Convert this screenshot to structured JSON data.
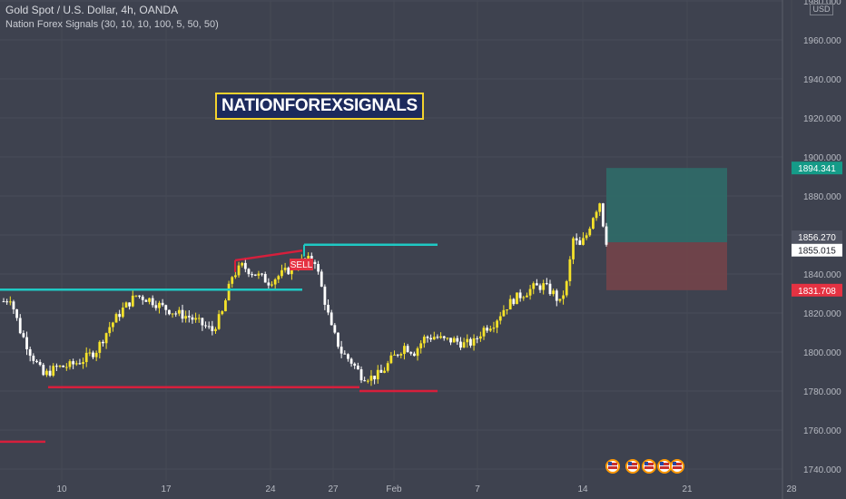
{
  "header": {
    "symbol_line": "Gold Spot / U.S. Dollar, 4h, OANDA",
    "indicator_line": "Nation Forex Signals  (30, 10, 10, 100, 5, 50, 50)"
  },
  "watermark": "NATIONFOREXSIGNALS",
  "currency_badge": "USD",
  "sell_label": "SELL",
  "colors": {
    "background": "#3e424f",
    "bull_candle": "#f5e22a",
    "bear_candle": "#ffffff",
    "resistance_line": "#1fc9c4",
    "support_line": "#d61f3c",
    "take_profit_zone": "#2f6b68",
    "stop_loss_zone": "#734449",
    "take_profit_tag": "#159b88",
    "stop_loss_tag": "#e53242"
  },
  "chart_data": {
    "type": "candlestick",
    "title": "Gold Spot / U.S. Dollar, 4h, OANDA",
    "ylim": [
      1735,
      1995
    ],
    "y_ticks": [
      1740,
      1760,
      1780,
      1800,
      1820,
      1840,
      1860,
      1880,
      1900,
      1920,
      1940,
      1960,
      1980
    ],
    "y_tick_labels": [
      "1740.000",
      "1760.000",
      "1780.000",
      "1800.000",
      "1820.000",
      "1840.000",
      "1860.000",
      "1880.000",
      "1900.000",
      "1920.000",
      "1940.000",
      "1960.000",
      "1980.000"
    ],
    "x_ticks": [
      "10",
      "17",
      "24",
      "27",
      "Feb",
      "7",
      "14",
      "21",
      "28"
    ],
    "price_path": [
      {
        "t": 0,
        "p": 1826
      },
      {
        "t": 2,
        "p": 1828
      },
      {
        "t": 5,
        "p": 1811
      },
      {
        "t": 8,
        "p": 1800
      },
      {
        "t": 12,
        "p": 1788
      },
      {
        "t": 16,
        "p": 1792
      },
      {
        "t": 20,
        "p": 1793
      },
      {
        "t": 24,
        "p": 1796
      },
      {
        "t": 28,
        "p": 1801
      },
      {
        "t": 32,
        "p": 1813
      },
      {
        "t": 36,
        "p": 1822
      },
      {
        "t": 40,
        "p": 1829
      },
      {
        "t": 44,
        "p": 1827
      },
      {
        "t": 48,
        "p": 1823
      },
      {
        "t": 52,
        "p": 1820
      },
      {
        "t": 56,
        "p": 1818
      },
      {
        "t": 60,
        "p": 1814
      },
      {
        "t": 63,
        "p": 1811
      },
      {
        "t": 66,
        "p": 1820
      },
      {
        "t": 69,
        "p": 1839
      },
      {
        "t": 72,
        "p": 1844
      },
      {
        "t": 76,
        "p": 1840
      },
      {
        "t": 80,
        "p": 1836
      },
      {
        "t": 84,
        "p": 1840
      },
      {
        "t": 87,
        "p": 1843
      },
      {
        "t": 89,
        "p": 1846
      },
      {
        "t": 91,
        "p": 1847
      },
      {
        "t": 94,
        "p": 1847
      },
      {
        "t": 96,
        "p": 1833
      },
      {
        "t": 99,
        "p": 1812
      },
      {
        "t": 102,
        "p": 1800
      },
      {
        "t": 105,
        "p": 1795
      },
      {
        "t": 108,
        "p": 1788
      },
      {
        "t": 111,
        "p": 1787
      },
      {
        "t": 114,
        "p": 1789
      },
      {
        "t": 117,
        "p": 1796
      },
      {
        "t": 121,
        "p": 1803
      },
      {
        "t": 124,
        "p": 1800
      },
      {
        "t": 127,
        "p": 1807
      },
      {
        "t": 130,
        "p": 1808
      },
      {
        "t": 133,
        "p": 1806
      },
      {
        "t": 136,
        "p": 1806
      },
      {
        "t": 139,
        "p": 1804
      },
      {
        "t": 142,
        "p": 1805
      },
      {
        "t": 145,
        "p": 1812
      },
      {
        "t": 148,
        "p": 1815
      },
      {
        "t": 151,
        "p": 1822
      },
      {
        "t": 154,
        "p": 1827
      },
      {
        "t": 157,
        "p": 1830
      },
      {
        "t": 160,
        "p": 1833
      },
      {
        "t": 163,
        "p": 1834
      },
      {
        "t": 166,
        "p": 1830
      },
      {
        "t": 168,
        "p": 1825
      },
      {
        "t": 170,
        "p": 1835
      },
      {
        "t": 172,
        "p": 1858
      },
      {
        "t": 174,
        "p": 1854
      },
      {
        "t": 176,
        "p": 1860
      },
      {
        "t": 178,
        "p": 1870
      },
      {
        "t": 180,
        "p": 1877
      },
      {
        "t": 182,
        "p": 1855
      }
    ],
    "levels": [
      {
        "kind": "resistance",
        "price": 1832
      },
      {
        "kind": "resistance",
        "price": 1855
      },
      {
        "kind": "support",
        "price": 1782
      },
      {
        "kind": "support",
        "price": 1780
      },
      {
        "kind": "support",
        "price": 1754
      },
      {
        "kind": "trendline",
        "from": 1847,
        "to": 1852
      }
    ],
    "trade": {
      "side": "sell",
      "take_profit": 1894.341,
      "entry": 1856.27,
      "current": 1855.015,
      "stop_loss": 1831.708
    },
    "price_tags": [
      "1894.341",
      "1856.270",
      "1855.015",
      "1831.708"
    ]
  }
}
